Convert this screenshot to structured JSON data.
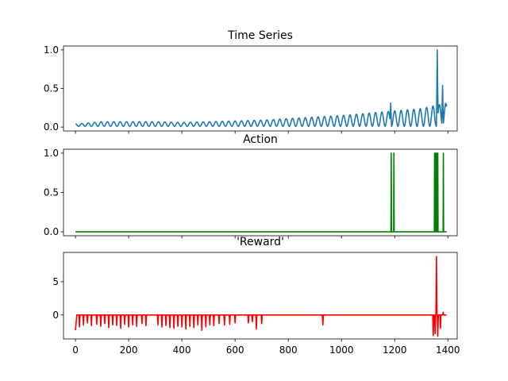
{
  "colors": {
    "background": "#ffffff",
    "series_1": "#1f77b4",
    "series_2": "#008000",
    "series_3": "#ff0000"
  },
  "chart_data": [
    {
      "type": "line",
      "title": "Time Series",
      "xlim": [
        -45,
        1435
      ],
      "ylim": [
        -0.05,
        1.05
      ],
      "yticks": [
        0.0,
        0.5,
        1.0
      ],
      "ytick_labels": [
        "0.0",
        "0.5",
        "1.0"
      ],
      "series": [
        {
          "color": "#1f77b4",
          "style": "oscillating",
          "x_range": [
            0,
            1395
          ],
          "points": [
            [
              0,
              0.03
            ],
            [
              100,
              0.06
            ],
            [
              200,
              0.06
            ],
            [
              300,
              0.06
            ],
            [
              400,
              0.05
            ],
            [
              500,
              0.06
            ],
            [
              600,
              0.07
            ],
            [
              700,
              0.08
            ],
            [
              800,
              0.1
            ],
            [
              900,
              0.12
            ],
            [
              1000,
              0.14
            ],
            [
              1100,
              0.17
            ],
            [
              1200,
              0.2
            ],
            [
              1300,
              0.23
            ],
            [
              1340,
              0.26
            ],
            [
              1395,
              0.3
            ]
          ],
          "peaks": [
            [
              1185,
              0.31
            ],
            [
              1360,
              1.0
            ],
            [
              1380,
              0.54
            ]
          ]
        }
      ]
    },
    {
      "type": "line",
      "title": "Action",
      "xlim": [
        -45,
        1435
      ],
      "ylim": [
        -0.05,
        1.05
      ],
      "yticks": [
        0.0,
        0.5,
        1.0
      ],
      "ytick_labels": [
        "0.0",
        "0.5",
        "1.0"
      ],
      "series": [
        {
          "color": "#008000",
          "style": "spikes",
          "x_range": [
            0,
            1395
          ],
          "baseline": 0,
          "spikes": [
            [
              1187,
              1
            ],
            [
              1197,
              1
            ],
            [
              1350,
              1
            ],
            [
              1354,
              1
            ],
            [
              1358,
              1
            ],
            [
              1362,
              1
            ],
            [
              1383,
              1
            ]
          ]
        }
      ]
    },
    {
      "type": "line",
      "title": "'Reward'",
      "xlim": [
        -45,
        1435
      ],
      "ylim": [
        -3.6,
        9.4
      ],
      "yticks": [
        0,
        5
      ],
      "ytick_labels": [
        "0",
        "5"
      ],
      "xticks": [
        0,
        200,
        400,
        600,
        800,
        1000,
        1200,
        1400
      ],
      "xtick_labels": [
        "0",
        "200",
        "400",
        "600",
        "800",
        "1000",
        "1200",
        "1400"
      ],
      "series": [
        {
          "color": "#ff0000",
          "style": "dips",
          "x_range": [
            0,
            1395
          ],
          "baseline": 0,
          "dips": [
            [
              3,
              -2.3
            ],
            [
              15,
              -1.8
            ],
            [
              30,
              -1.5
            ],
            [
              45,
              -1.2
            ],
            [
              60,
              -1.6
            ],
            [
              80,
              -1.4
            ],
            [
              95,
              -1.7
            ],
            [
              110,
              -1.3
            ],
            [
              125,
              -1.9
            ],
            [
              140,
              -1.5
            ],
            [
              155,
              -1.6
            ],
            [
              170,
              -2.0
            ],
            [
              185,
              -1.4
            ],
            [
              200,
              -1.8
            ],
            [
              215,
              -1.5
            ],
            [
              230,
              -1.7
            ],
            [
              250,
              -1.3
            ],
            [
              265,
              -1.6
            ],
            [
              310,
              -1.5
            ],
            [
              325,
              -1.8
            ],
            [
              340,
              -1.6
            ],
            [
              355,
              -1.9
            ],
            [
              370,
              -2.0
            ],
            [
              385,
              -1.7
            ],
            [
              400,
              -1.8
            ],
            [
              415,
              -2.1
            ],
            [
              430,
              -1.7
            ],
            [
              445,
              -1.9
            ],
            [
              460,
              -1.5
            ],
            [
              475,
              -2.3
            ],
            [
              490,
              -1.8
            ],
            [
              505,
              -1.5
            ],
            [
              520,
              -1.6
            ],
            [
              540,
              -1.3
            ],
            [
              560,
              -1.5
            ],
            [
              580,
              -1.4
            ],
            [
              600,
              -1.2
            ],
            [
              650,
              -1.2
            ],
            [
              665,
              -1.0
            ],
            [
              680,
              -2.1
            ],
            [
              700,
              -1.3
            ],
            [
              930,
              -1.5
            ],
            [
              1345,
              -3.1
            ],
            [
              1352,
              -2.8
            ],
            [
              1362,
              -3.2
            ],
            [
              1372,
              -2.0
            ]
          ],
          "peaks": [
            [
              1357,
              8.8
            ],
            [
              1382,
              0.4
            ]
          ]
        }
      ]
    }
  ]
}
